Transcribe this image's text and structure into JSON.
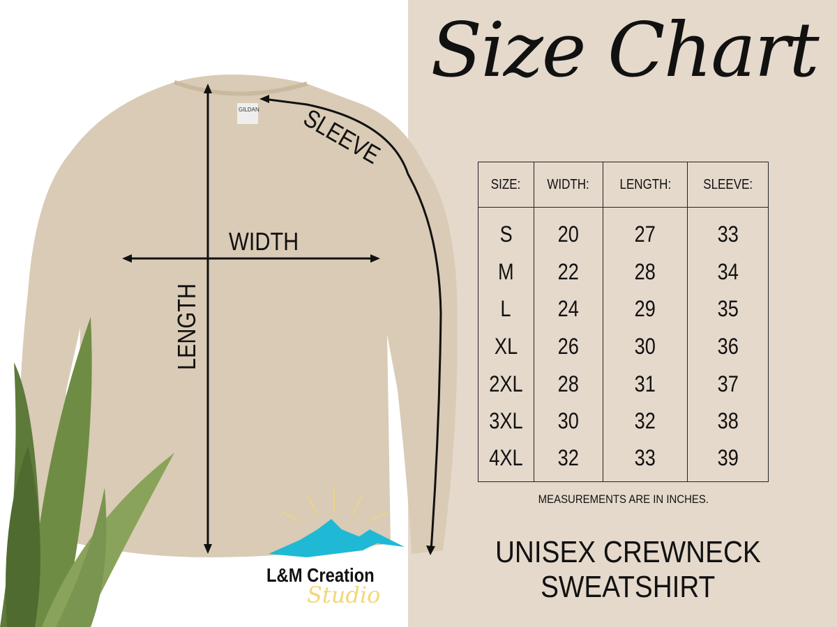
{
  "title": "Size Chart",
  "table": {
    "headers": [
      "SIZE:",
      "WIDTH:",
      "LENGTH:",
      "SLEEVE:"
    ],
    "rows": [
      [
        "S",
        "20",
        "27",
        "33"
      ],
      [
        "M",
        "22",
        "28",
        "34"
      ],
      [
        "L",
        "24",
        "29",
        "35"
      ],
      [
        "XL",
        "26",
        "30",
        "36"
      ],
      [
        "2XL",
        "28",
        "31",
        "37"
      ],
      [
        "3XL",
        "30",
        "32",
        "38"
      ],
      [
        "4XL",
        "32",
        "33",
        "39"
      ]
    ]
  },
  "note": "MEASUREMENTS ARE IN INCHES.",
  "product": {
    "line1": "UNISEX CREWNECK",
    "line2": "SWEATSHIRT"
  },
  "diagram": {
    "width_label": "WIDTH",
    "length_label": "LENGTH",
    "sleeve_label": "SLEEVE",
    "tag": "GILDAN"
  },
  "logo": {
    "name": "L&M Creation",
    "sub": "Studio"
  },
  "colors": {
    "panel": "#e5d9cc",
    "shirt": "#d9cbb5",
    "mountains": "#1fb9d6",
    "sun": "#f3d776"
  }
}
